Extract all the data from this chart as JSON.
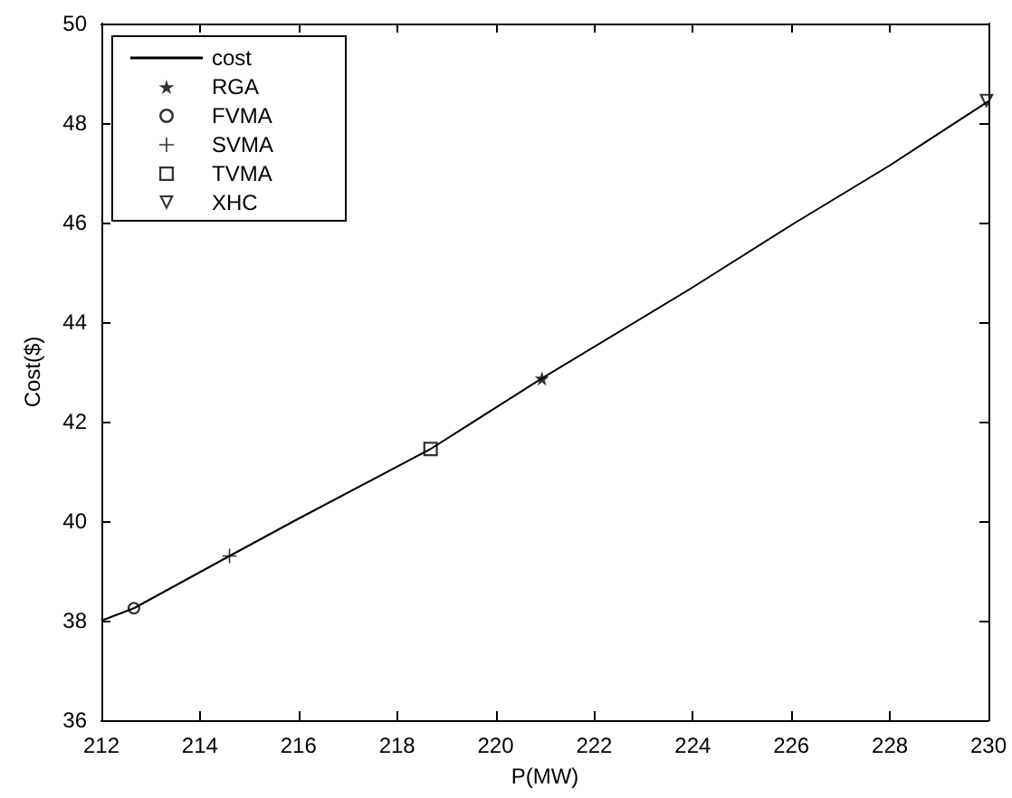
{
  "chart_data": {
    "type": "line",
    "xlabel": "P(MW)",
    "ylabel": "Cost($)",
    "xlim": [
      212,
      230
    ],
    "xticks": [
      212,
      214,
      216,
      218,
      220,
      222,
      224,
      226,
      228,
      230
    ],
    "ylim": [
      36,
      50
    ],
    "yticks": [
      36,
      38,
      40,
      42,
      44,
      46,
      48,
      50
    ],
    "grid": false,
    "legend": "top left",
    "series": [
      {
        "name": "cost",
        "color": "#000000",
        "marker": "none",
        "line_style": "solid",
        "x": [
          212,
          212.66,
          214.6,
          216,
          218.68,
          220.94,
          224,
          226,
          228,
          230
        ],
        "values": [
          38.0,
          38.25,
          39.3,
          40.05,
          41.45,
          42.87,
          44.7,
          45.95,
          47.15,
          48.44
        ]
      },
      {
        "name": "RGA",
        "type": "scatter",
        "color": "#000000",
        "marker": "star",
        "x": [
          220.94
        ],
        "values": [
          42.87
        ]
      },
      {
        "name": "FVMA",
        "type": "scatter",
        "color": "#000000",
        "marker": "circle",
        "x": [
          212.66
        ],
        "values": [
          38.25
        ]
      },
      {
        "name": "SVMA",
        "type": "scatter",
        "color": "#000000",
        "marker": "cross",
        "x": [
          214.6
        ],
        "values": [
          39.3
        ]
      },
      {
        "name": "TVMA",
        "type": "scatter",
        "color": "#000000",
        "marker": "square",
        "x": [
          218.68
        ],
        "values": [
          41.45
        ]
      },
      {
        "name": "XHC",
        "type": "scatter",
        "color": "#000000",
        "marker": "triangle",
        "x": [
          229.96
        ],
        "values": [
          48.44
        ]
      }
    ]
  }
}
